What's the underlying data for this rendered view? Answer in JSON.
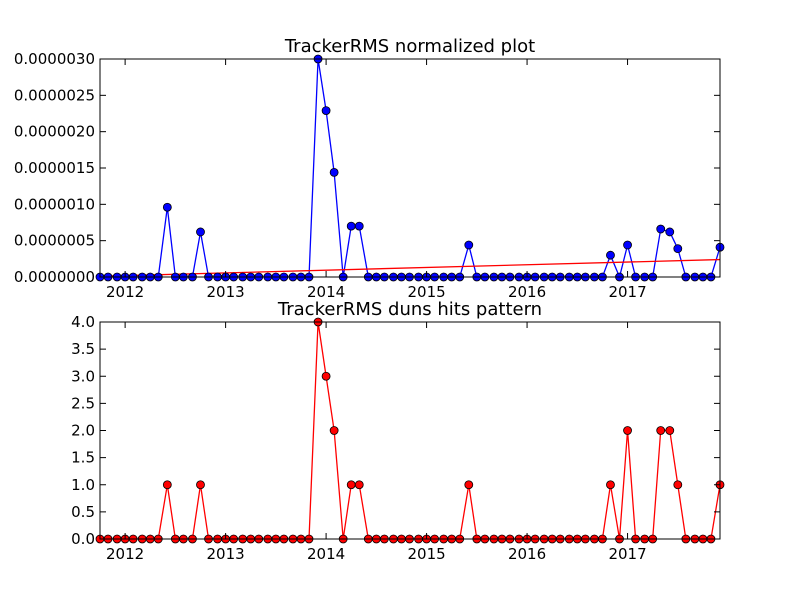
{
  "chart_data": [
    {
      "type": "line",
      "title": "TrackerRMS normalized plot",
      "xlabel": "",
      "ylabel": "",
      "xlim": [
        2011.75,
        2017.92
      ],
      "ylim": [
        0,
        3e-06
      ],
      "x_ticks": [
        "2012",
        "2013",
        "2014",
        "2015",
        "2016",
        "2017"
      ],
      "y_ticks": [
        "0.0000000",
        "0.0000005",
        "0.0000010",
        "0.0000015",
        "0.0000020",
        "0.0000025",
        "0.0000030"
      ],
      "grid": false,
      "x": [
        2011.75,
        2011.83,
        2011.92,
        2012.0,
        2012.08,
        2012.17,
        2012.25,
        2012.33,
        2012.42,
        2012.5,
        2012.58,
        2012.67,
        2012.75,
        2012.83,
        2012.92,
        2013.0,
        2013.08,
        2013.17,
        2013.25,
        2013.33,
        2013.42,
        2013.5,
        2013.58,
        2013.67,
        2013.75,
        2013.83,
        2013.92,
        2014.0,
        2014.08,
        2014.17,
        2014.25,
        2014.33,
        2014.42,
        2014.5,
        2014.58,
        2014.67,
        2014.75,
        2014.83,
        2014.92,
        2015.0,
        2015.08,
        2015.17,
        2015.25,
        2015.33,
        2015.42,
        2015.5,
        2015.58,
        2015.67,
        2015.75,
        2015.83,
        2015.92,
        2016.0,
        2016.08,
        2016.17,
        2016.25,
        2016.33,
        2016.42,
        2016.5,
        2016.58,
        2016.67,
        2016.75,
        2016.83,
        2016.92,
        2017.0,
        2017.08,
        2017.17,
        2017.25,
        2017.33,
        2017.42,
        2017.5,
        2017.58,
        2017.67,
        2017.75,
        2017.83,
        2017.92
      ],
      "series": [
        {
          "color": "#0000ff",
          "marker": "circle",
          "values": [
            0,
            0,
            0,
            0,
            0,
            0,
            0,
            0,
            9.6e-07,
            0,
            0,
            0,
            6.2e-07,
            0,
            0,
            0,
            0,
            0,
            0,
            0,
            0,
            0,
            0,
            0,
            0,
            0,
            3e-06,
            2.29e-06,
            1.44e-06,
            0,
            7e-07,
            7e-07,
            0,
            0,
            0,
            0,
            0,
            0,
            0,
            0,
            0,
            0,
            0,
            0,
            4.4e-07,
            0,
            0,
            0,
            0,
            0,
            0,
            0,
            0,
            0,
            0,
            0,
            0,
            0,
            0,
            0,
            0,
            3e-07,
            0,
            4.4e-07,
            0,
            0,
            0,
            6.6e-07,
            6.2e-07,
            3.9e-07,
            0,
            0,
            0,
            0,
            4.1e-07
          ]
        },
        {
          "color": "#ff0000",
          "marker": "none",
          "x": [
            2011.75,
            2017.92
          ],
          "values": [
            1e-08,
            2.4e-07
          ]
        }
      ]
    },
    {
      "type": "line",
      "title": "TrackerRMS duns hits pattern",
      "xlabel": "",
      "ylabel": "",
      "xlim": [
        2011.75,
        2017.92
      ],
      "ylim": [
        0,
        4
      ],
      "x_ticks": [
        "2012",
        "2013",
        "2014",
        "2015",
        "2016",
        "2017"
      ],
      "y_ticks": [
        "0.0",
        "0.5",
        "1.0",
        "1.5",
        "2.0",
        "2.5",
        "3.0",
        "3.5",
        "4.0"
      ],
      "grid": false,
      "x": [
        2011.75,
        2011.83,
        2011.92,
        2012.0,
        2012.08,
        2012.17,
        2012.25,
        2012.33,
        2012.42,
        2012.5,
        2012.58,
        2012.67,
        2012.75,
        2012.83,
        2012.92,
        2013.0,
        2013.08,
        2013.17,
        2013.25,
        2013.33,
        2013.42,
        2013.5,
        2013.58,
        2013.67,
        2013.75,
        2013.83,
        2013.92,
        2014.0,
        2014.08,
        2014.17,
        2014.25,
        2014.33,
        2014.42,
        2014.5,
        2014.58,
        2014.67,
        2014.75,
        2014.83,
        2014.92,
        2015.0,
        2015.08,
        2015.17,
        2015.25,
        2015.33,
        2015.42,
        2015.5,
        2015.58,
        2015.67,
        2015.75,
        2015.83,
        2015.92,
        2016.0,
        2016.08,
        2016.17,
        2016.25,
        2016.33,
        2016.42,
        2016.5,
        2016.58,
        2016.67,
        2016.75,
        2016.83,
        2016.92,
        2017.0,
        2017.08,
        2017.17,
        2017.25,
        2017.33,
        2017.42,
        2017.5,
        2017.58,
        2017.67,
        2017.75,
        2017.83,
        2017.92
      ],
      "series": [
        {
          "color": "#ff0000",
          "marker": "circle",
          "values": [
            0,
            0,
            0,
            0,
            0,
            0,
            0,
            0,
            1,
            0,
            0,
            0,
            1,
            0,
            0,
            0,
            0,
            0,
            0,
            0,
            0,
            0,
            0,
            0,
            0,
            0,
            4,
            3,
            2,
            0,
            1,
            1,
            0,
            0,
            0,
            0,
            0,
            0,
            0,
            0,
            0,
            0,
            0,
            0,
            1,
            0,
            0,
            0,
            0,
            0,
            0,
            0,
            0,
            0,
            0,
            0,
            0,
            0,
            0,
            0,
            0,
            1,
            0,
            2,
            0,
            0,
            0,
            2,
            2,
            1,
            0,
            0,
            0,
            0,
            1
          ]
        }
      ]
    }
  ]
}
